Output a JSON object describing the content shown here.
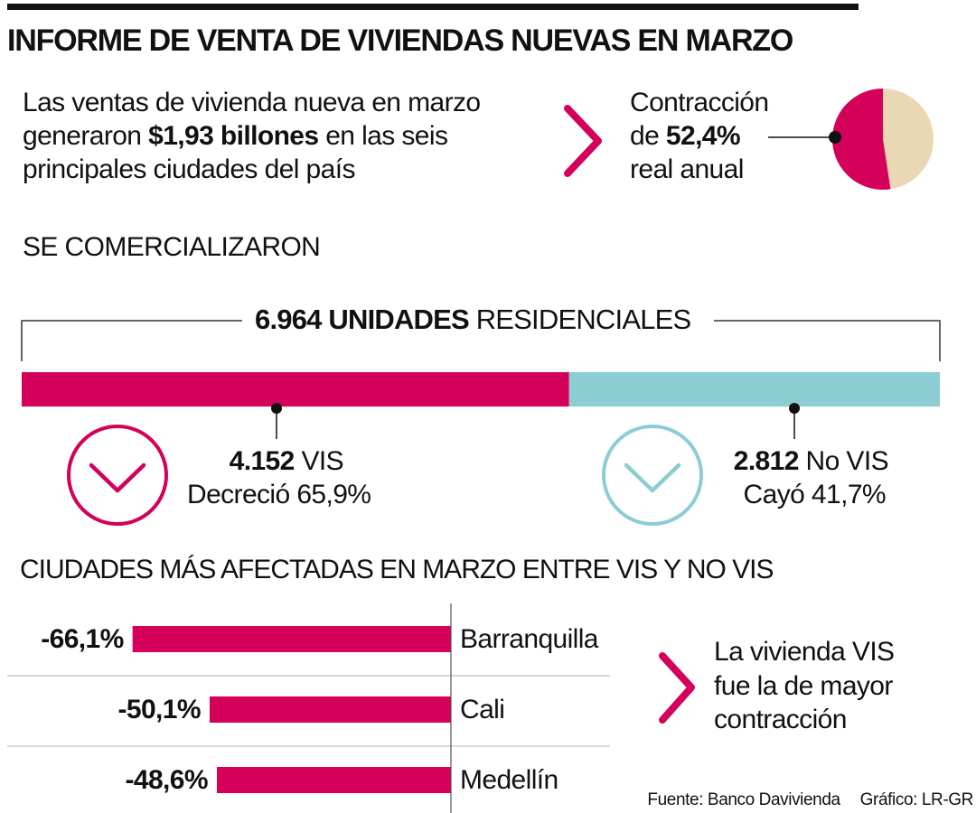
{
  "title": "INFORME DE VENTA DE VIVIENDAS NUEVAS EN MARZO",
  "intro": {
    "line1": "Las ventas de vivienda nueva en marzo",
    "line2_pre": "generaron ",
    "line2_bold": "$1,93 billones",
    "line2_post": " en las seis",
    "line3": "principales ciudades del país"
  },
  "contraction": {
    "line1": "Contracción",
    "line2_pre": "de ",
    "line2_bold": "52,4%",
    "line3": "real anual"
  },
  "section1": "SE COMERCIALIZARON",
  "units": {
    "bold": "6.964 UNIDADES",
    "rest": " RESIDENCIALES"
  },
  "vis": {
    "value": "4.152",
    "label": " VIS",
    "change_label": "Decreció ",
    "change": "65,9%"
  },
  "novis": {
    "value": "2.812",
    "label": " No VIS",
    "change_label": "Cayó ",
    "change": "41,7%"
  },
  "section2": "CIUDADES MÁS AFECTADAS EN MARZO ENTRE VIS Y NO VIS",
  "note": {
    "line1": "La vivienda VIS",
    "line2": "fue la de mayor",
    "line3": "contracción"
  },
  "footer": {
    "source": "Fuente: Banco Davivienda",
    "credit": "Gráfico: LR-GR"
  },
  "colors": {
    "crimson": "#d4005a",
    "teal": "#8ccdd3",
    "beige": "#ead8b4"
  },
  "chart_data": [
    {
      "type": "pie",
      "title": "Contracción real anual",
      "values": [
        {
          "label": "Contracción",
          "value": 52.4
        },
        {
          "label": "Resto",
          "value": 47.6
        }
      ]
    },
    {
      "type": "bar",
      "title": "6.964 unidades residenciales",
      "stacked": true,
      "total": 6964,
      "categories": [
        "VIS",
        "No VIS"
      ],
      "values": [
        4152,
        2812
      ]
    },
    {
      "type": "bar",
      "title": "CIUDADES MÁS AFECTADAS EN MARZO ENTRE VIS Y NO VIS",
      "orientation": "horizontal",
      "categories": [
        "Barranquilla",
        "Cali",
        "Medellín"
      ],
      "values": [
        -66.1,
        -50.1,
        -48.6
      ],
      "value_labels": [
        "-66,1%",
        "-50,1%",
        "-48,6%"
      ]
    }
  ]
}
